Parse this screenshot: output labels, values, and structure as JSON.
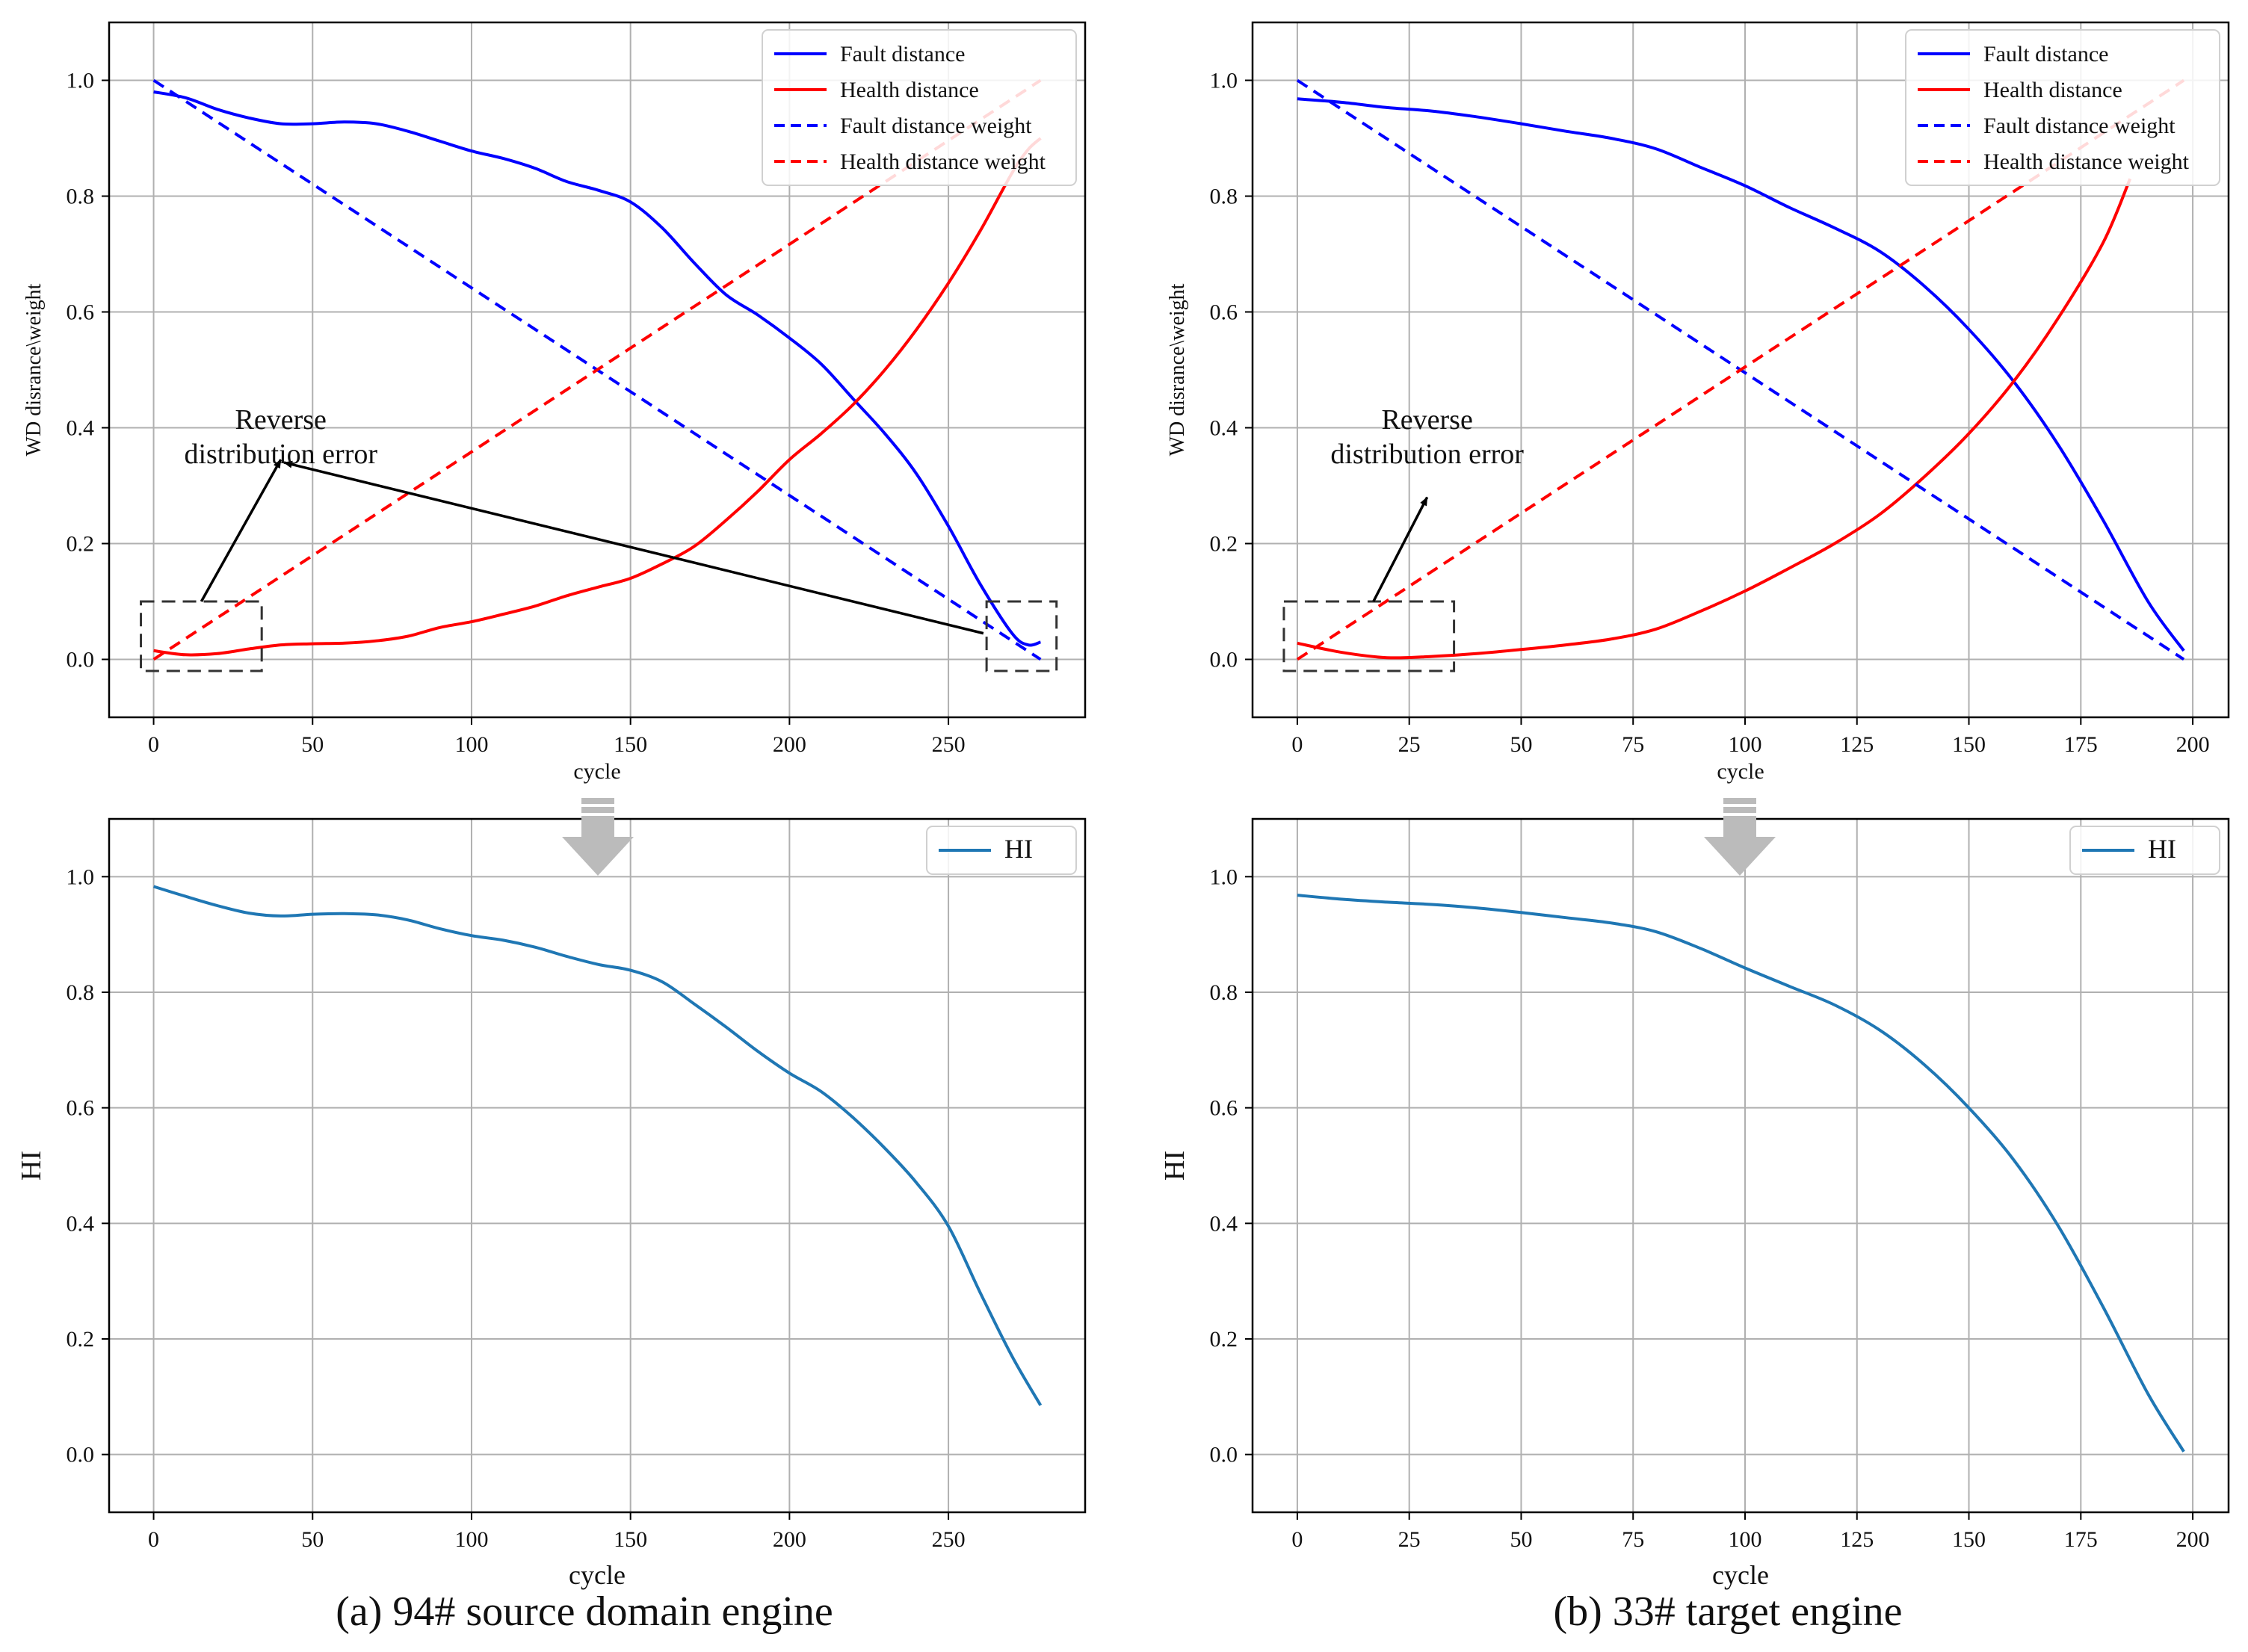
{
  "captions": {
    "a": "(a) 94# source domain engine",
    "b": "(b) 33# target engine"
  },
  "annotation_text": {
    "line1": "Reverse",
    "line2": "distribution error"
  },
  "colors": {
    "fault": "#0000ff",
    "health": "#ff0000",
    "hi": "#1f77b4",
    "grid": "#b0b0b0",
    "arrow_down": "#bbbbbb"
  },
  "chart_data": [
    {
      "id": "a-top",
      "type": "line",
      "xlabel": "cycle",
      "ylabel": "WD disrance\\weight",
      "xticks": [
        0,
        50,
        100,
        150,
        200,
        250
      ],
      "yticks": [
        0.0,
        0.2,
        0.4,
        0.6,
        0.8,
        1.0
      ],
      "xlim": [
        -14,
        293
      ],
      "ylim": [
        -0.1,
        1.1
      ],
      "legend_position": "top-right",
      "series": [
        {
          "name": "Fault distance",
          "style": "solid",
          "color": "#0000ff",
          "x": [
            0,
            10,
            20,
            30,
            40,
            50,
            60,
            70,
            80,
            90,
            100,
            110,
            120,
            130,
            140,
            150,
            160,
            170,
            180,
            190,
            200,
            210,
            220,
            230,
            240,
            250,
            260,
            270,
            275,
            279
          ],
          "y": [
            0.98,
            0.97,
            0.95,
            0.935,
            0.925,
            0.925,
            0.928,
            0.925,
            0.912,
            0.895,
            0.878,
            0.865,
            0.848,
            0.825,
            0.81,
            0.79,
            0.745,
            0.685,
            0.63,
            0.595,
            0.555,
            0.51,
            0.45,
            0.39,
            0.32,
            0.23,
            0.13,
            0.045,
            0.025,
            0.03
          ]
        },
        {
          "name": "Health distance",
          "style": "solid",
          "color": "#ff0000",
          "x": [
            0,
            10,
            20,
            30,
            40,
            50,
            60,
            70,
            80,
            90,
            100,
            110,
            120,
            130,
            140,
            150,
            160,
            170,
            180,
            190,
            200,
            210,
            220,
            230,
            240,
            250,
            260,
            270,
            275,
            279
          ],
          "y": [
            0.015,
            0.008,
            0.01,
            0.018,
            0.025,
            0.027,
            0.028,
            0.032,
            0.04,
            0.055,
            0.065,
            0.078,
            0.092,
            0.11,
            0.125,
            0.14,
            0.165,
            0.195,
            0.24,
            0.29,
            0.345,
            0.39,
            0.44,
            0.5,
            0.57,
            0.65,
            0.74,
            0.84,
            0.88,
            0.9
          ]
        },
        {
          "name": "Fault distance weight",
          "style": "dashed",
          "color": "#0000ff",
          "x": [
            0,
            279
          ],
          "y": [
            1.0,
            0.0
          ]
        },
        {
          "name": "Health distance weight",
          "style": "dashed",
          "color": "#ff0000",
          "x": [
            0,
            279
          ],
          "y": [
            0.0,
            1.0
          ]
        }
      ],
      "annotation": {
        "label": "Reverse\ndistribution error",
        "text_anchor": [
          40,
          0.37
        ],
        "boxes": [
          {
            "x0": -4,
            "x1": 34,
            "y0": -0.02,
            "y1": 0.1
          },
          {
            "x0": 262,
            "x1": 284,
            "y0": -0.02,
            "y1": 0.1
          }
        ],
        "arrows": [
          {
            "from": [
              15,
              0.1
            ],
            "to": [
              40,
              0.345
            ]
          },
          {
            "from": [
              261,
              0.045
            ],
            "to": [
              41,
              0.34
            ]
          }
        ]
      }
    },
    {
      "id": "b-top",
      "type": "line",
      "xlabel": "cycle",
      "ylabel": "WD disrance\\weight",
      "xticks": [
        0,
        25,
        50,
        75,
        100,
        125,
        150,
        175,
        200
      ],
      "yticks": [
        0.0,
        0.2,
        0.4,
        0.6,
        0.8,
        1.0
      ],
      "xlim": [
        -10,
        208
      ],
      "ylim": [
        -0.1,
        1.1
      ],
      "legend_position": "top-right",
      "series": [
        {
          "name": "Fault distance",
          "style": "solid",
          "color": "#0000ff",
          "x": [
            0,
            10,
            20,
            30,
            40,
            50,
            60,
            70,
            80,
            90,
            100,
            110,
            120,
            130,
            140,
            150,
            160,
            170,
            180,
            190,
            198
          ],
          "y": [
            0.968,
            0.962,
            0.953,
            0.947,
            0.937,
            0.925,
            0.912,
            0.9,
            0.882,
            0.85,
            0.818,
            0.78,
            0.745,
            0.705,
            0.645,
            0.57,
            0.48,
            0.37,
            0.24,
            0.1,
            0.015
          ]
        },
        {
          "name": "Health distance",
          "style": "solid",
          "color": "#ff0000",
          "x": [
            0,
            10,
            20,
            30,
            40,
            50,
            60,
            70,
            80,
            90,
            100,
            110,
            120,
            130,
            140,
            150,
            160,
            170,
            180,
            186
          ],
          "y": [
            0.028,
            0.012,
            0.003,
            0.005,
            0.01,
            0.017,
            0.025,
            0.035,
            0.052,
            0.083,
            0.118,
            0.158,
            0.2,
            0.25,
            0.315,
            0.39,
            0.48,
            0.59,
            0.72,
            0.83
          ]
        },
        {
          "name": "Fault distance weight",
          "style": "dashed",
          "color": "#0000ff",
          "x": [
            0,
            198
          ],
          "y": [
            1.0,
            0.0
          ]
        },
        {
          "name": "Health distance weight",
          "style": "dashed",
          "color": "#ff0000",
          "x": [
            0,
            198
          ],
          "y": [
            0.0,
            1.0
          ]
        }
      ],
      "annotation": {
        "label": "Reverse\ndistribution error",
        "text_anchor": [
          29,
          0.37
        ],
        "boxes": [
          {
            "x0": -3,
            "x1": 35,
            "y0": -0.02,
            "y1": 0.1
          }
        ],
        "arrows": [
          {
            "from": [
              17,
              0.1
            ],
            "to": [
              29,
              0.28
            ]
          }
        ]
      }
    },
    {
      "id": "a-bottom",
      "type": "line",
      "xlabel": "cycle",
      "ylabel": "HI",
      "xticks": [
        0,
        50,
        100,
        150,
        200,
        250
      ],
      "yticks": [
        0.0,
        0.2,
        0.4,
        0.6,
        0.8,
        1.0
      ],
      "xlim": [
        -14,
        293
      ],
      "ylim": [
        -0.1,
        1.1
      ],
      "legend_position": "top-right",
      "series": [
        {
          "name": "HI",
          "style": "solid",
          "color": "#1f77b4",
          "x": [
            0,
            10,
            20,
            30,
            40,
            50,
            60,
            70,
            80,
            90,
            100,
            110,
            120,
            130,
            140,
            150,
            160,
            170,
            180,
            190,
            200,
            210,
            220,
            230,
            240,
            250,
            260,
            270,
            279
          ],
          "y": [
            0.983,
            0.966,
            0.95,
            0.937,
            0.932,
            0.935,
            0.936,
            0.934,
            0.925,
            0.91,
            0.898,
            0.89,
            0.878,
            0.862,
            0.848,
            0.838,
            0.818,
            0.78,
            0.74,
            0.698,
            0.66,
            0.628,
            0.583,
            0.53,
            0.47,
            0.395,
            0.28,
            0.17,
            0.085
          ]
        }
      ]
    },
    {
      "id": "b-bottom",
      "type": "line",
      "xlabel": "cycle",
      "ylabel": "HI",
      "xticks": [
        0,
        25,
        50,
        75,
        100,
        125,
        150,
        175,
        200
      ],
      "yticks": [
        0.0,
        0.2,
        0.4,
        0.6,
        0.8,
        1.0
      ],
      "xlim": [
        -10,
        208
      ],
      "ylim": [
        -0.1,
        1.1
      ],
      "legend_position": "top-right",
      "series": [
        {
          "name": "HI",
          "style": "solid",
          "color": "#1f77b4",
          "x": [
            0,
            10,
            20,
            30,
            40,
            50,
            60,
            70,
            80,
            90,
            100,
            110,
            120,
            130,
            140,
            150,
            160,
            170,
            180,
            190,
            198
          ],
          "y": [
            0.968,
            0.961,
            0.956,
            0.952,
            0.946,
            0.938,
            0.929,
            0.92,
            0.905,
            0.876,
            0.842,
            0.81,
            0.778,
            0.735,
            0.675,
            0.6,
            0.51,
            0.395,
            0.255,
            0.105,
            0.005
          ]
        }
      ]
    }
  ]
}
